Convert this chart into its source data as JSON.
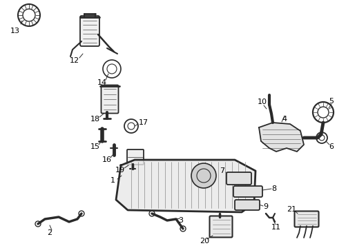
{
  "background_color": "#ffffff",
  "line_color": "#2a2a2a",
  "text_color": "#000000",
  "fig_width": 4.89,
  "fig_height": 3.6,
  "dpi": 100
}
